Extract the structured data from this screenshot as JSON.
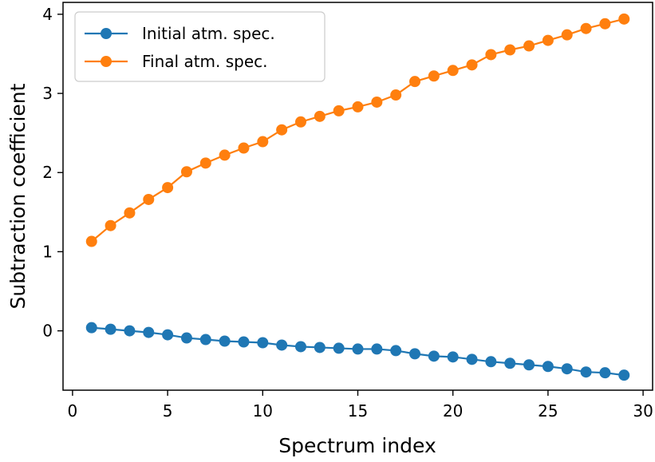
{
  "chart_data": {
    "type": "line",
    "title": "",
    "xlabel": "Spectrum index",
    "ylabel": "Subtraction  coefficient",
    "xlim": [
      -0.5,
      30.5
    ],
    "ylim": [
      -0.75,
      4.15
    ],
    "grid": false,
    "legend_position": "top-left",
    "xticks": [
      0,
      5,
      10,
      15,
      20,
      25,
      30
    ],
    "xtick_labels": [
      "0",
      "5",
      "10",
      "15",
      "20",
      "25",
      "30"
    ],
    "yticks": [
      0,
      1,
      2,
      3,
      4
    ],
    "ytick_labels": [
      "0",
      "1",
      "2",
      "3",
      "4"
    ],
    "x": [
      1,
      2,
      3,
      4,
      5,
      6,
      7,
      8,
      9,
      10,
      11,
      12,
      13,
      14,
      15,
      16,
      17,
      18,
      19,
      20,
      21,
      22,
      23,
      24,
      25,
      26,
      27,
      28,
      29
    ],
    "series": [
      {
        "name": "Initial atm. spec.",
        "color": "#1f77b4",
        "values": [
          0.04,
          0.02,
          0.0,
          -0.02,
          -0.05,
          -0.09,
          -0.11,
          -0.13,
          -0.14,
          -0.15,
          -0.18,
          -0.2,
          -0.21,
          -0.22,
          -0.23,
          -0.23,
          -0.25,
          -0.29,
          -0.32,
          -0.33,
          -0.36,
          -0.39,
          -0.41,
          -0.43,
          -0.45,
          -0.48,
          -0.52,
          -0.53,
          -0.56
        ]
      },
      {
        "name": "Final atm. spec.",
        "color": "#ff7f0e",
        "values": [
          1.13,
          1.33,
          1.49,
          1.66,
          1.81,
          2.01,
          2.12,
          2.22,
          2.31,
          2.39,
          2.54,
          2.64,
          2.71,
          2.78,
          2.83,
          2.89,
          2.98,
          3.15,
          3.22,
          3.29,
          3.36,
          3.49,
          3.55,
          3.6,
          3.67,
          3.74,
          3.82,
          3.88,
          3.94
        ]
      }
    ]
  }
}
